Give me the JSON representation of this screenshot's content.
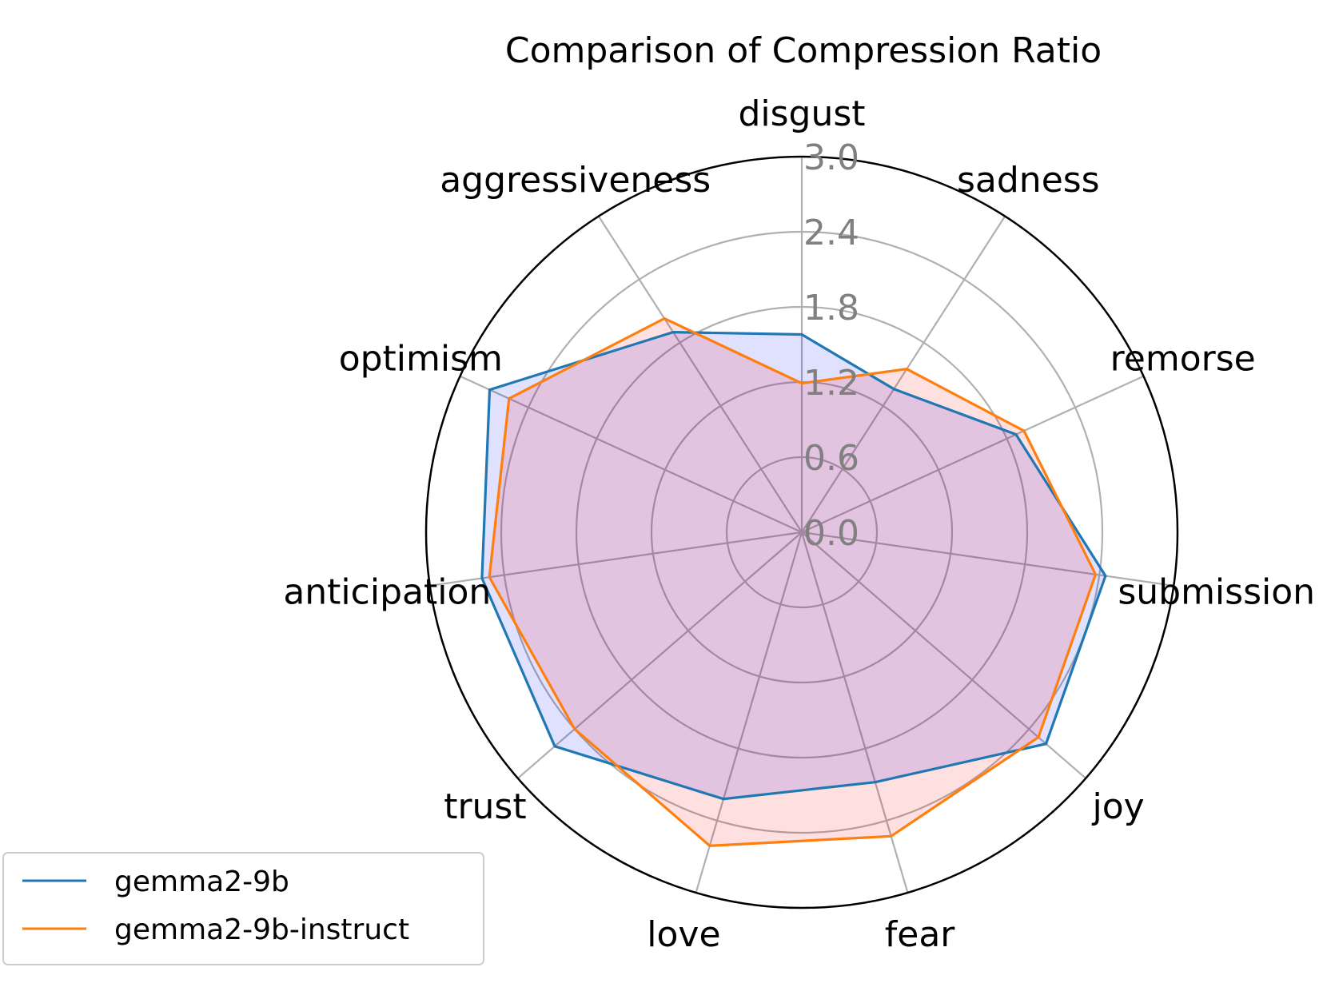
{
  "chart_data": {
    "type": "radar",
    "title": "Comparison of Compression Ratio",
    "categories": [
      "disgust",
      "sadness",
      "remorse",
      "submission",
      "joy",
      "fear",
      "love",
      "trust",
      "anticipation",
      "optimism",
      "aggressiveness"
    ],
    "r_ticks": [
      0.0,
      0.6,
      1.2,
      1.8,
      2.4,
      3.0
    ],
    "r_tick_labels": [
      "0.0",
      "0.6",
      "1.2",
      "1.8",
      "2.4",
      "3.0"
    ],
    "rlim": [
      0,
      3.0
    ],
    "grid": true,
    "legend_position": "lower-left",
    "series": [
      {
        "name": "gemma2-9b",
        "color": "#1f77b4",
        "fill": "#0000ff",
        "values": [
          1.58,
          1.36,
          1.88,
          2.45,
          2.58,
          2.08,
          2.22,
          2.61,
          2.58,
          2.74,
          1.9
        ]
      },
      {
        "name": "gemma2-9b-instruct",
        "color": "#ff7f0e",
        "fill": "#ff0000",
        "values": [
          1.19,
          1.55,
          1.95,
          2.37,
          2.5,
          2.53,
          2.61,
          2.4,
          2.52,
          2.57,
          2.03
        ]
      }
    ]
  }
}
